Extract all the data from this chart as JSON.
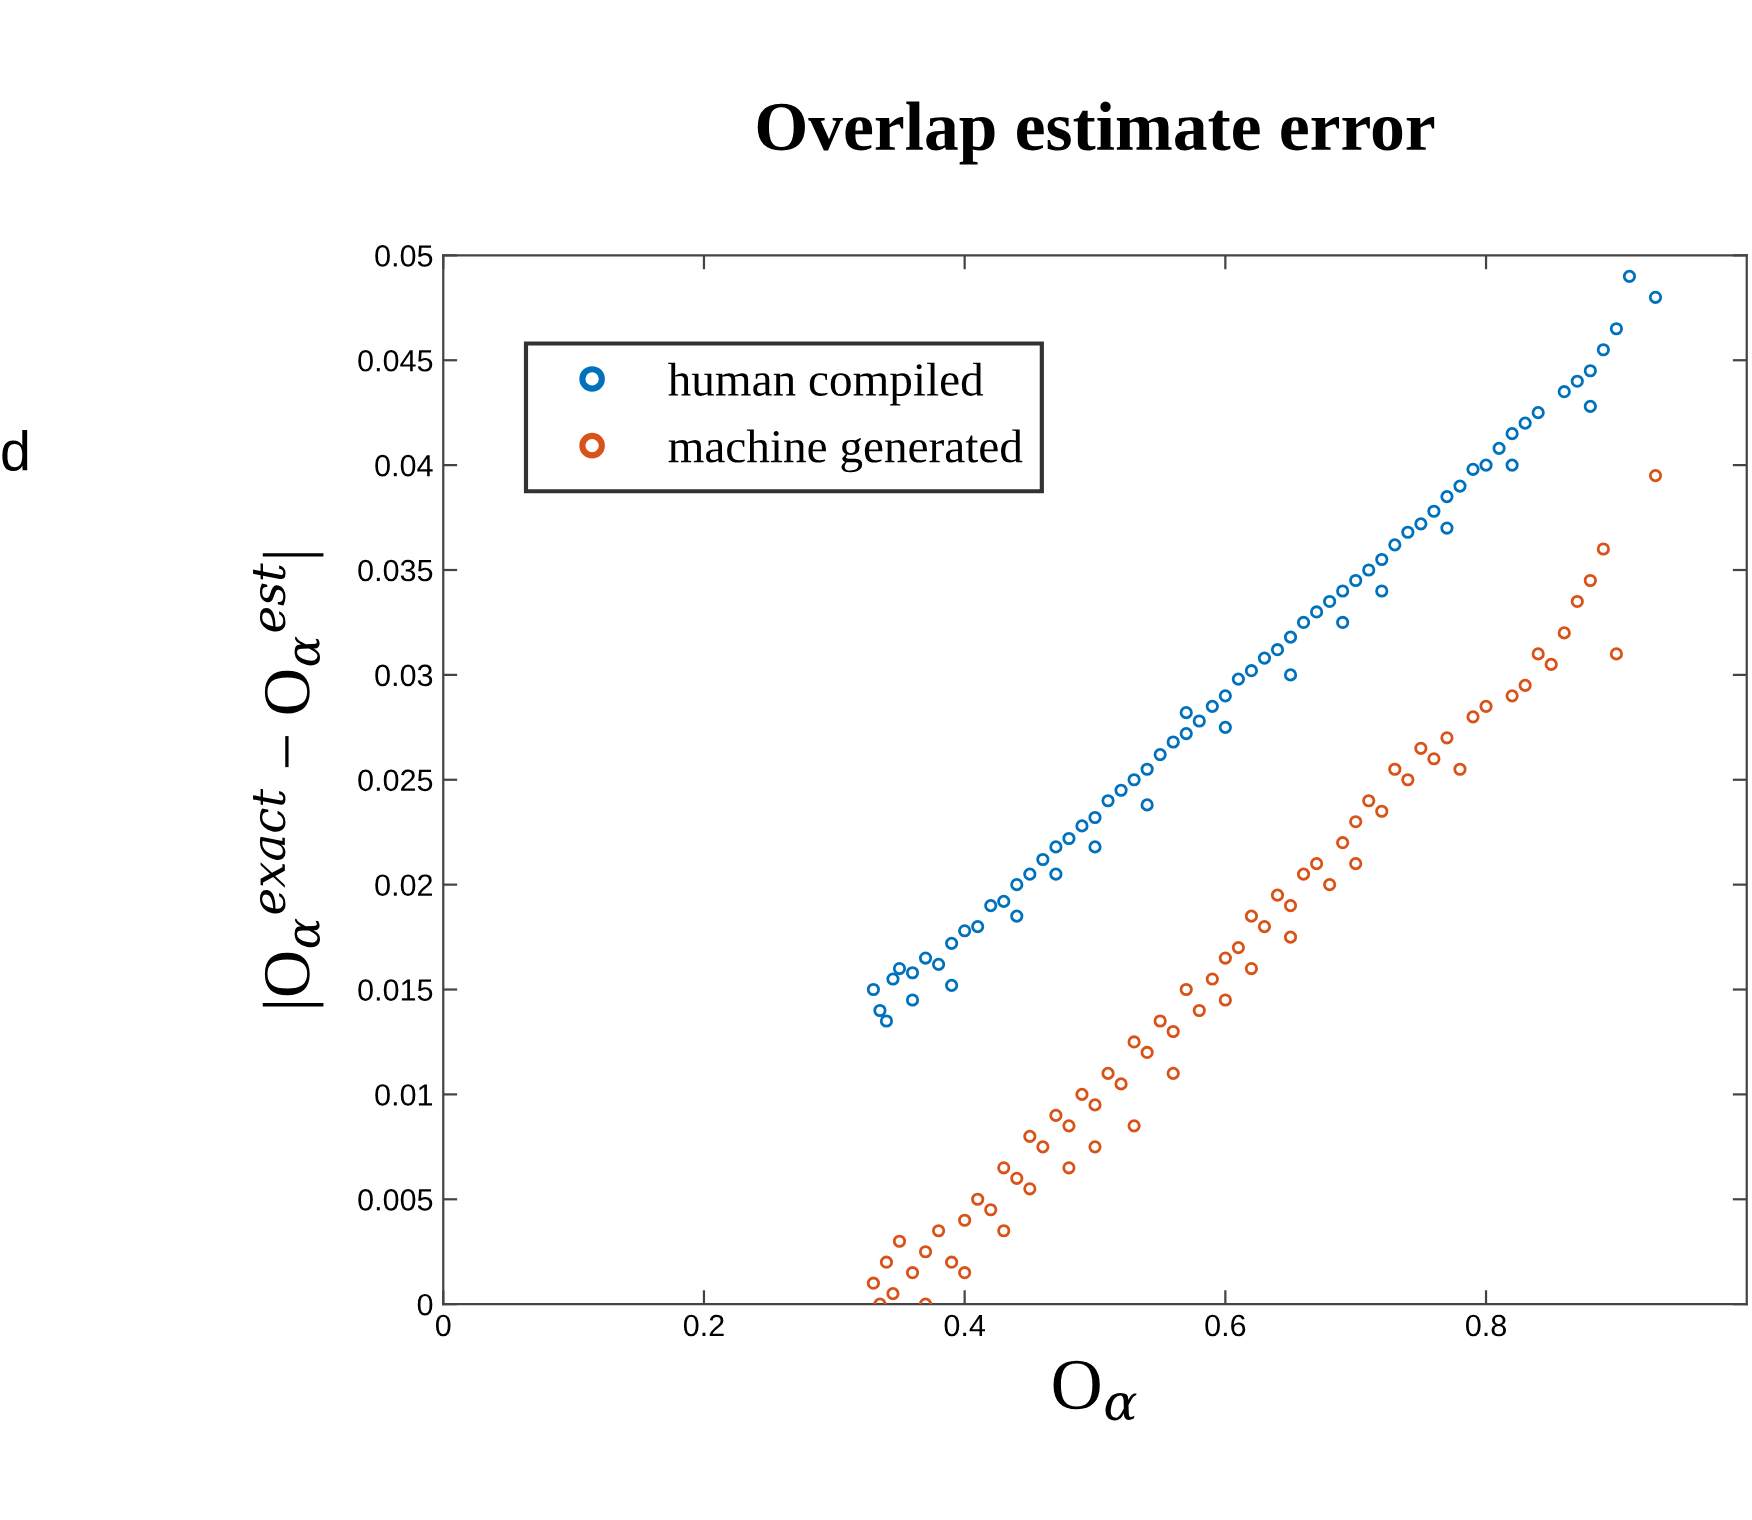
{
  "chart_data": {
    "type": "scatter",
    "title": "Overlap estimate error",
    "xlabel": "O$_{α}$",
    "ylabel": "|O$_{α}$$^{exact}$ − O$_{α}$$^{est}$|",
    "annotations": [
      "d"
    ],
    "xlim": [
      0,
      1
    ],
    "xticks": [
      0,
      0.2,
      0.4,
      0.6,
      0.8
    ],
    "ylim": [
      0,
      0.05
    ],
    "yticks": [
      0,
      0.005,
      0.01,
      0.015,
      0.02,
      0.025,
      0.03,
      0.035,
      0.04,
      0.045,
      0.05
    ],
    "legend": "top left",
    "marker": "circle",
    "grid": false,
    "series": [
      {
        "name": "human compiled",
        "color": "#0072bd",
        "x": [
          0.33,
          0.335,
          0.34,
          0.345,
          0.35,
          0.36,
          0.36,
          0.37,
          0.38,
          0.39,
          0.39,
          0.4,
          0.41,
          0.42,
          0.43,
          0.44,
          0.44,
          0.45,
          0.46,
          0.47,
          0.47,
          0.48,
          0.49,
          0.5,
          0.5,
          0.51,
          0.52,
          0.53,
          0.54,
          0.54,
          0.55,
          0.56,
          0.57,
          0.57,
          0.58,
          0.59,
          0.6,
          0.6,
          0.61,
          0.62,
          0.63,
          0.64,
          0.65,
          0.65,
          0.66,
          0.67,
          0.68,
          0.69,
          0.69,
          0.7,
          0.71,
          0.72,
          0.72,
          0.73,
          0.74,
          0.75,
          0.76,
          0.77,
          0.77,
          0.78,
          0.79,
          0.8,
          0.81,
          0.82,
          0.82,
          0.83,
          0.84,
          0.86,
          0.87,
          0.88,
          0.88,
          0.89,
          0.9,
          0.91,
          0.93
        ],
        "values": [
          0.015,
          0.014,
          0.0135,
          0.0155,
          0.016,
          0.0158,
          0.0145,
          0.0165,
          0.0162,
          0.0172,
          0.0152,
          0.0178,
          0.018,
          0.019,
          0.0192,
          0.02,
          0.0185,
          0.0205,
          0.0212,
          0.0218,
          0.0205,
          0.0222,
          0.0228,
          0.0232,
          0.0218,
          0.024,
          0.0245,
          0.025,
          0.0255,
          0.0238,
          0.0262,
          0.0268,
          0.0272,
          0.0282,
          0.0278,
          0.0285,
          0.029,
          0.0275,
          0.0298,
          0.0302,
          0.0308,
          0.0312,
          0.0318,
          0.03,
          0.0325,
          0.033,
          0.0335,
          0.034,
          0.0325,
          0.0345,
          0.035,
          0.0355,
          0.034,
          0.0362,
          0.0368,
          0.0372,
          0.0378,
          0.0385,
          0.037,
          0.039,
          0.0398,
          0.04,
          0.0408,
          0.0415,
          0.04,
          0.042,
          0.0425,
          0.0435,
          0.044,
          0.0445,
          0.0428,
          0.0455,
          0.0465,
          0.049,
          0.048
        ]
      },
      {
        "name": "machine generated",
        "color": "#d95319",
        "x": [
          0.33,
          0.335,
          0.34,
          0.345,
          0.35,
          0.36,
          0.37,
          0.37,
          0.38,
          0.39,
          0.4,
          0.4,
          0.41,
          0.42,
          0.43,
          0.43,
          0.44,
          0.45,
          0.45,
          0.46,
          0.47,
          0.48,
          0.48,
          0.49,
          0.5,
          0.5,
          0.51,
          0.52,
          0.53,
          0.53,
          0.54,
          0.55,
          0.56,
          0.56,
          0.57,
          0.58,
          0.59,
          0.6,
          0.6,
          0.61,
          0.62,
          0.62,
          0.63,
          0.64,
          0.65,
          0.65,
          0.66,
          0.67,
          0.68,
          0.69,
          0.7,
          0.7,
          0.71,
          0.72,
          0.73,
          0.74,
          0.75,
          0.76,
          0.77,
          0.78,
          0.79,
          0.8,
          0.82,
          0.83,
          0.84,
          0.85,
          0.86,
          0.87,
          0.88,
          0.89,
          0.9,
          0.93
        ],
        "values": [
          0.001,
          0.0,
          0.002,
          0.0005,
          0.003,
          0.0015,
          0.0025,
          0.0,
          0.0035,
          0.002,
          0.004,
          0.0015,
          0.005,
          0.0045,
          0.0065,
          0.0035,
          0.006,
          0.008,
          0.0055,
          0.0075,
          0.009,
          0.0085,
          0.0065,
          0.01,
          0.0095,
          0.0075,
          0.011,
          0.0105,
          0.0125,
          0.0085,
          0.012,
          0.0135,
          0.013,
          0.011,
          0.015,
          0.014,
          0.0155,
          0.0165,
          0.0145,
          0.017,
          0.016,
          0.0185,
          0.018,
          0.0195,
          0.019,
          0.0175,
          0.0205,
          0.021,
          0.02,
          0.022,
          0.023,
          0.021,
          0.024,
          0.0235,
          0.0255,
          0.025,
          0.0265,
          0.026,
          0.027,
          0.0255,
          0.028,
          0.0285,
          0.029,
          0.0295,
          0.031,
          0.0305,
          0.032,
          0.0335,
          0.0345,
          0.036,
          0.031,
          0.0395
        ]
      }
    ]
  }
}
